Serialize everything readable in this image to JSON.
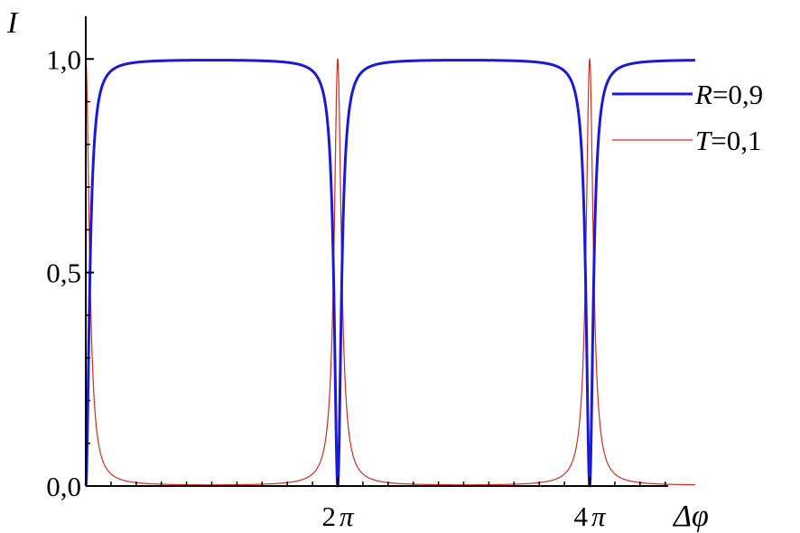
{
  "chart_data": {
    "type": "line",
    "title": "",
    "ylabel": "I",
    "xlabel": "Δφ",
    "xlim": [
      0,
      15.2
    ],
    "ylim": [
      0,
      1.1
    ],
    "y_ticks": [
      {
        "value": 0.0,
        "label": "0,0"
      },
      {
        "value": 0.5,
        "label": "0,5"
      },
      {
        "value": 1.0,
        "label": "1,0"
      }
    ],
    "x_ticks": [
      {
        "value": 6.2832,
        "label_num": "2",
        "label_sym": "π"
      },
      {
        "value": 12.5664,
        "label_num": "4",
        "label_sym": "π"
      }
    ],
    "x_minor_step": 0.6283,
    "legend": {
      "placement": "top-right"
    },
    "series": [
      {
        "name": "R=0,9",
        "name_var": "R",
        "name_val": "=0,9",
        "color": "#1a1ad6",
        "formula": "F*sin^2(x/2)/(1+F*sin^2(x/2)), F=4R/(1-R)^2, R=0.9",
        "points": [
          [
            0,
            0
          ],
          [
            0.05,
            0.67
          ],
          [
            0.1,
            0.89
          ],
          [
            0.2,
            0.97
          ],
          [
            0.5,
            0.996
          ],
          [
            1.57,
            0.999
          ],
          [
            3.14,
            0.9997
          ],
          [
            4.71,
            0.999
          ],
          [
            5.78,
            0.996
          ],
          [
            6.08,
            0.97
          ],
          [
            6.18,
            0.89
          ],
          [
            6.23,
            0.67
          ],
          [
            6.283,
            0
          ],
          [
            6.33,
            0.67
          ],
          [
            6.38,
            0.89
          ],
          [
            6.48,
            0.97
          ],
          [
            6.78,
            0.996
          ],
          [
            9.42,
            0.9997
          ],
          [
            12.06,
            0.996
          ],
          [
            12.36,
            0.97
          ],
          [
            12.46,
            0.89
          ],
          [
            12.51,
            0.67
          ],
          [
            12.566,
            0
          ],
          [
            12.62,
            0.67
          ],
          [
            12.67,
            0.89
          ],
          [
            12.77,
            0.97
          ],
          [
            13.07,
            0.996
          ],
          [
            15.2,
            0.9996
          ]
        ]
      },
      {
        "name": "T=0,1",
        "name_var": "T",
        "name_val": "=0,1",
        "color": "#d62a1a",
        "formula": "1/(1+F*sin^2(x/2)), F=4R/(1-R)^2, R=0.9",
        "points": [
          [
            0,
            1
          ],
          [
            0.05,
            0.33
          ],
          [
            0.1,
            0.11
          ],
          [
            0.2,
            0.03
          ],
          [
            0.5,
            0.004
          ],
          [
            3.14,
            0.0003
          ],
          [
            5.78,
            0.004
          ],
          [
            6.08,
            0.03
          ],
          [
            6.18,
            0.11
          ],
          [
            6.23,
            0.33
          ],
          [
            6.283,
            1
          ],
          [
            6.33,
            0.33
          ],
          [
            6.38,
            0.11
          ],
          [
            6.48,
            0.03
          ],
          [
            6.78,
            0.004
          ],
          [
            9.42,
            0.0003
          ],
          [
            12.06,
            0.004
          ],
          [
            12.36,
            0.03
          ],
          [
            12.46,
            0.11
          ],
          [
            12.51,
            0.33
          ],
          [
            12.566,
            1
          ],
          [
            12.62,
            0.33
          ],
          [
            12.67,
            0.11
          ],
          [
            12.77,
            0.03
          ],
          [
            13.07,
            0.004
          ],
          [
            15.2,
            0.0004
          ]
        ]
      }
    ]
  }
}
